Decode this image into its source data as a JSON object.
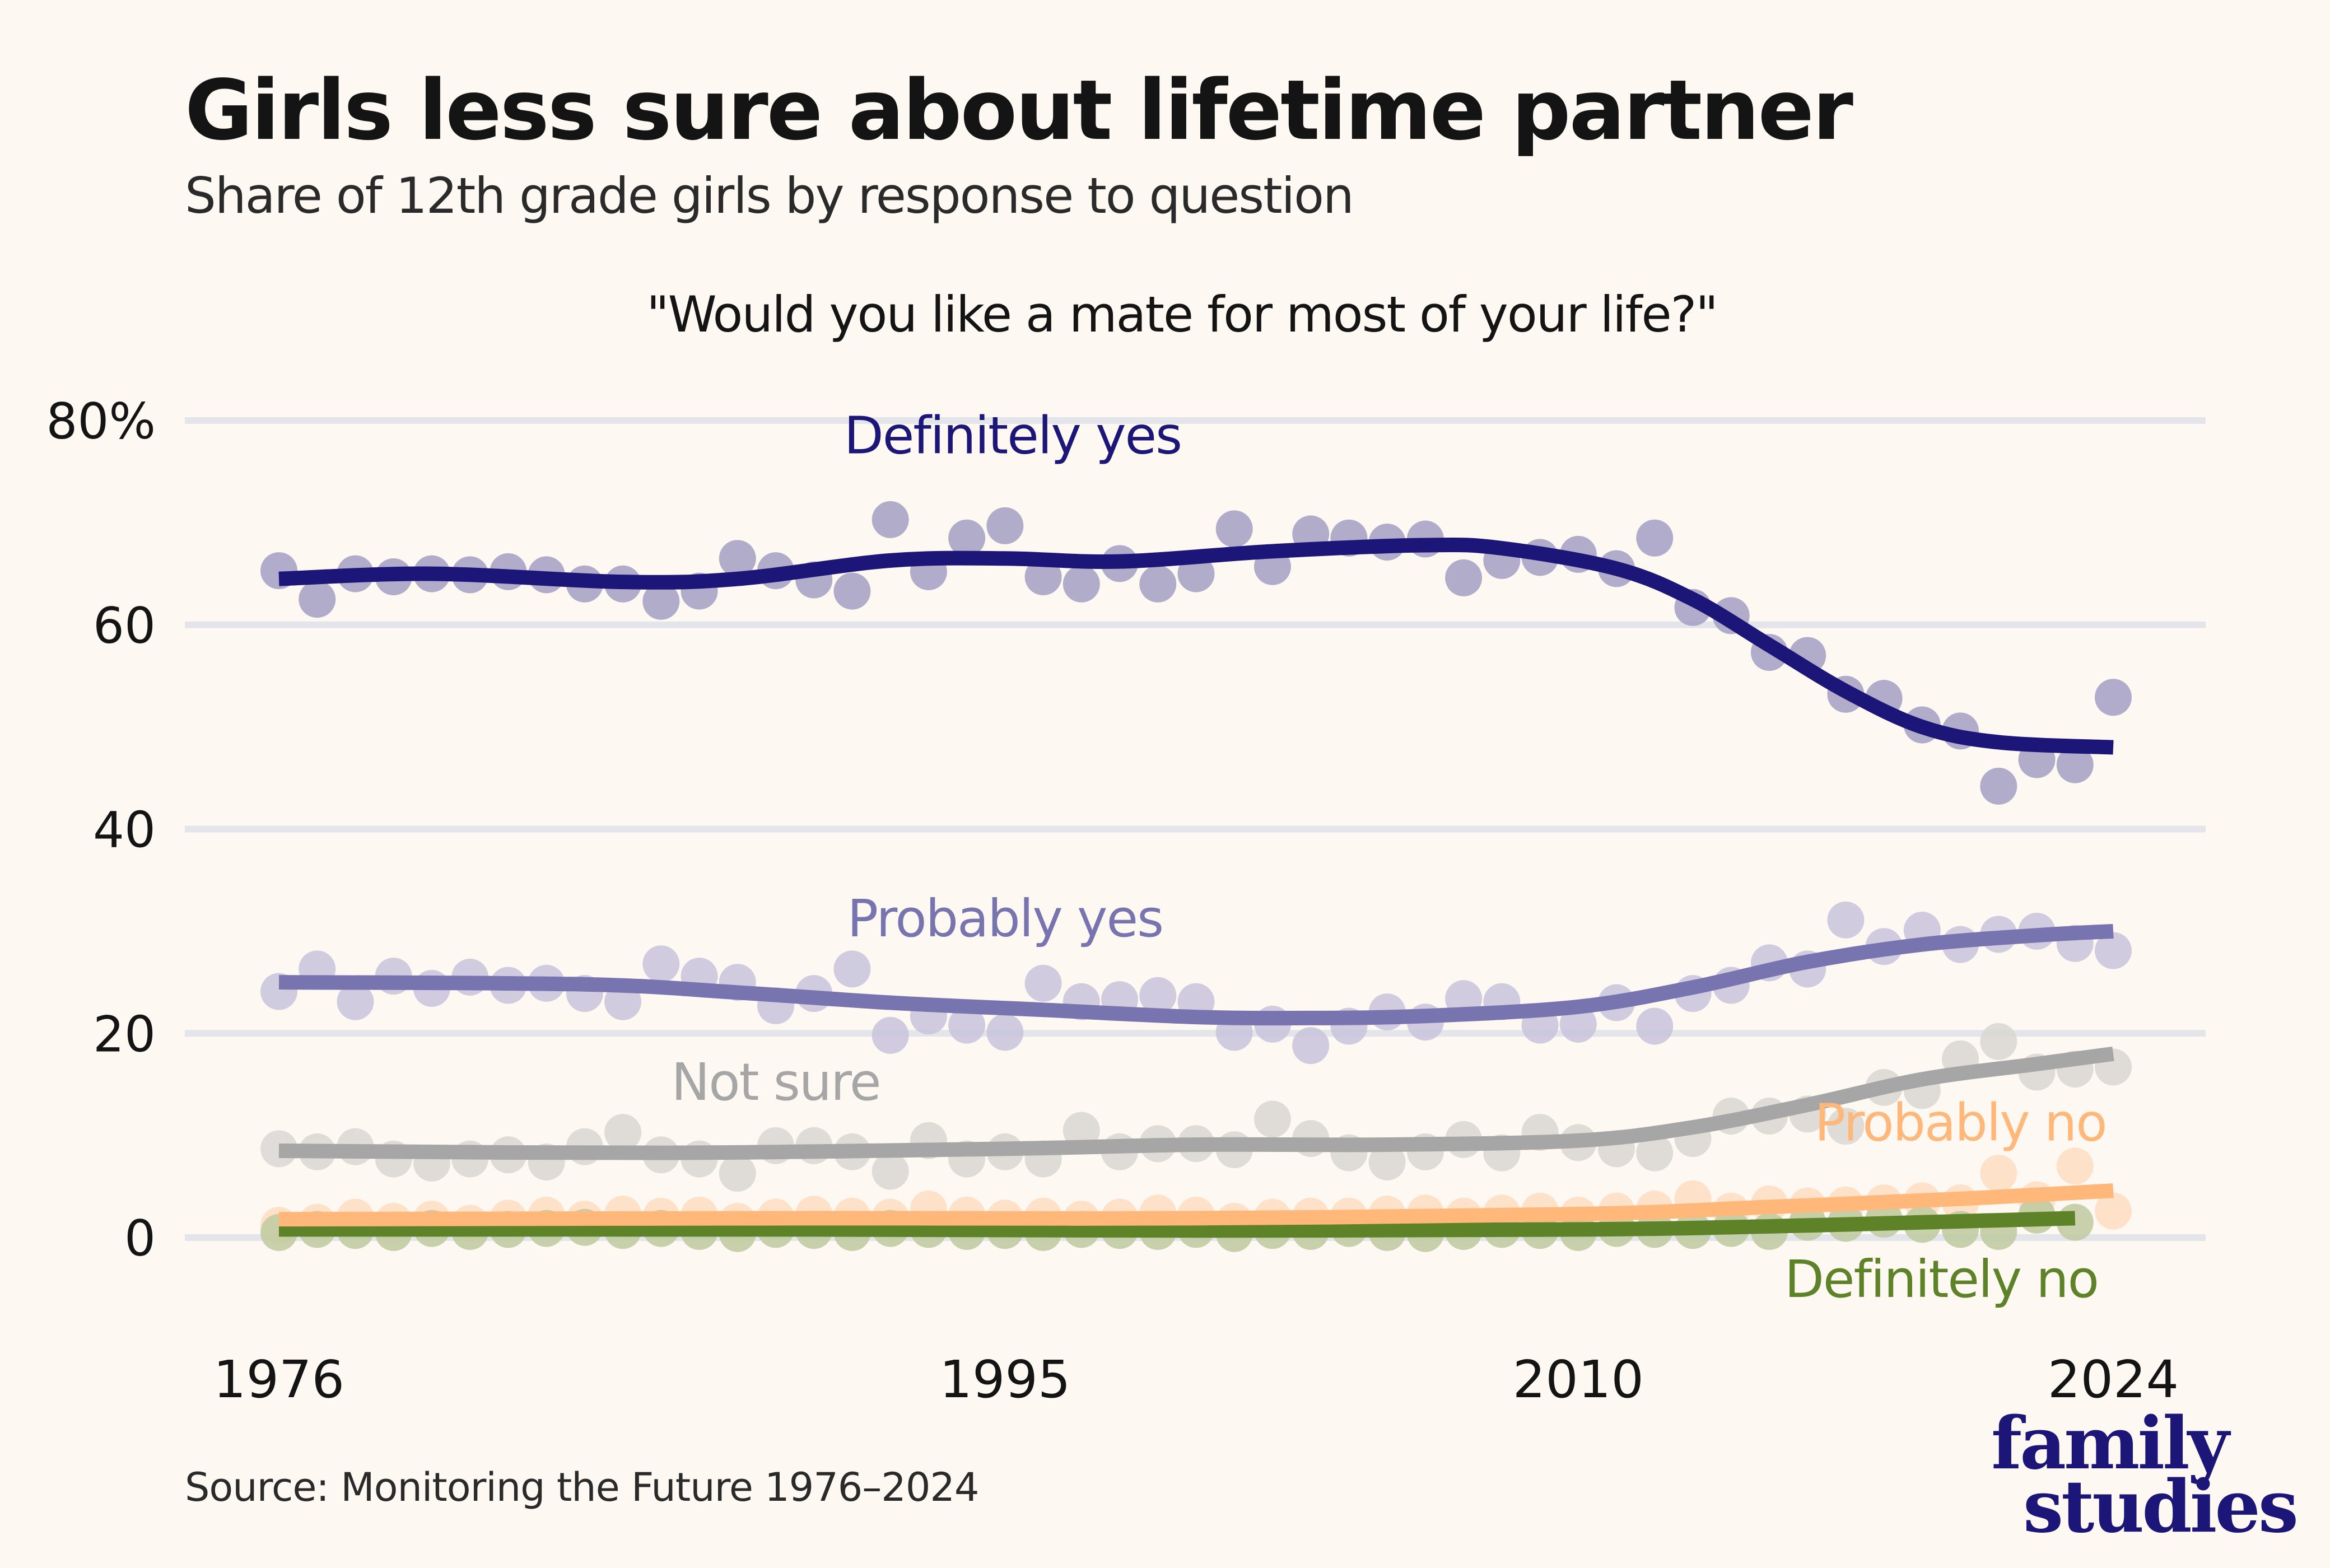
{
  "header": {
    "title": "Girls less sure about lifetime partner",
    "subtitle": "Share of 12th grade girls by response to question",
    "question": "\"Would you like a mate for most of your life?\""
  },
  "footer": {
    "source": "Source: Monitoring the Future 1976–2024",
    "logo_line1": "family",
    "logo_line2": "studies"
  },
  "colors": {
    "background": "#FEF8F3",
    "grid": "#E3E5EB",
    "logo": "#1C1678"
  },
  "chart_data": {
    "type": "scatter",
    "title": "Girls less sure about lifetime partner",
    "subtitle": "Share of 12th grade girls by response to question",
    "annotation": "\"Would you like a mate for most of your life?\"",
    "xlabel": "",
    "ylabel": "",
    "xlim": [
      1976,
      2024
    ],
    "ylim": [
      0,
      80
    ],
    "x_ticks": [
      1976,
      1995,
      2010,
      2024
    ],
    "x_tick_labels": [
      "1976",
      "1995",
      "2010",
      "2024"
    ],
    "y_ticks": [
      0,
      20,
      40,
      60,
      80
    ],
    "y_tick_labels": [
      "0",
      "20",
      "40",
      "60",
      "80%"
    ],
    "grid": "horizontal",
    "legend": "direct labels",
    "series": [
      {
        "name": "Definitely yes",
        "label": "Definitely yes",
        "line_color": "#1C1678",
        "dot_color": "#A49FC4",
        "label_year": 1995.2,
        "label_value": 76.8,
        "x": [
          1976,
          1977,
          1978,
          1979,
          1980,
          1981,
          1982,
          1983,
          1984,
          1985,
          1986,
          1987,
          1988,
          1989,
          1990,
          1991,
          1992,
          1993,
          1994,
          1995,
          1996,
          1997,
          1998,
          1999,
          2000,
          2001,
          2002,
          2003,
          2004,
          2005,
          2006,
          2007,
          2008,
          2009,
          2010,
          2011,
          2012,
          2013,
          2014,
          2015,
          2016,
          2017,
          2018,
          2019,
          2020,
          2021,
          2022,
          2023,
          2024
        ],
        "values": [
          65.3,
          62.5,
          65.0,
          64.7,
          65.0,
          64.9,
          65.2,
          64.9,
          64.0,
          64.0,
          62.3,
          63.3,
          66.5,
          65.3,
          64.4,
          63.3,
          70.3,
          65.2,
          68.5,
          69.7,
          64.7,
          64.0,
          66.0,
          64.0,
          65.0,
          69.4,
          65.7,
          68.9,
          68.5,
          68.1,
          68.4,
          64.6,
          66.3,
          66.6,
          66.9,
          65.5,
          68.5,
          61.7,
          60.9,
          57.3,
          57.0,
          53.2,
          52.8,
          50.2,
          49.6,
          44.2,
          46.8,
          46.3,
          52.9
        ],
        "trend_x": [
          1976,
          1980,
          1985,
          1988,
          1992,
          1995,
          1998,
          2002,
          2006,
          2008,
          2011,
          2013,
          2015,
          2017,
          2019,
          2021,
          2024
        ],
        "trend": [
          64.5,
          65.0,
          64.2,
          64.5,
          66.3,
          66.5,
          66.2,
          67.2,
          67.8,
          67.5,
          65.5,
          62.5,
          58.0,
          53.5,
          50.0,
          48.5,
          48.0
        ]
      },
      {
        "name": "Probably yes",
        "label": "Probably yes",
        "line_color": "#7874AF",
        "dot_color": "#C8C4DC",
        "label_year": 1995.0,
        "label_value": 29.5,
        "x": [
          1976,
          1977,
          1978,
          1979,
          1980,
          1981,
          1982,
          1983,
          1984,
          1985,
          1986,
          1987,
          1988,
          1989,
          1990,
          1991,
          1992,
          1993,
          1994,
          1995,
          1996,
          1997,
          1998,
          1999,
          2000,
          2001,
          2002,
          2003,
          2004,
          2005,
          2006,
          2007,
          2008,
          2009,
          2010,
          2011,
          2012,
          2013,
          2014,
          2015,
          2016,
          2017,
          2018,
          2019,
          2020,
          2021,
          2022,
          2023,
          2024
        ],
        "values": [
          24.1,
          26.3,
          23.1,
          25.6,
          24.4,
          25.5,
          24.7,
          24.9,
          23.9,
          23.1,
          26.8,
          25.6,
          25.0,
          22.7,
          23.9,
          26.3,
          19.8,
          21.7,
          20.8,
          20.1,
          24.9,
          23.1,
          23.3,
          23.7,
          23.1,
          20.1,
          20.9,
          18.8,
          20.7,
          22.1,
          21.1,
          23.4,
          23.1,
          20.8,
          20.9,
          23.0,
          20.7,
          23.9,
          24.7,
          26.9,
          26.3,
          31.1,
          28.5,
          30.1,
          28.7,
          29.7,
          30.0,
          28.8,
          28.1
        ],
        "trend_x": [
          1976,
          1984,
          1988,
          1992,
          1996,
          2000,
          2003,
          2006,
          2010,
          2013,
          2016,
          2019,
          2022,
          2024
        ],
        "trend": [
          25.0,
          24.8,
          24.0,
          23.0,
          22.3,
          21.6,
          21.5,
          21.7,
          22.6,
          24.5,
          27.0,
          28.7,
          29.6,
          30.0
        ]
      },
      {
        "name": "Not sure",
        "label": "Not sure",
        "line_color": "#A6A6A6",
        "dot_color": "#DAD7D3",
        "label_year": 1989.0,
        "label_value": 13.5,
        "x": [
          1976,
          1977,
          1978,
          1979,
          1980,
          1981,
          1982,
          1983,
          1984,
          1985,
          1986,
          1987,
          1988,
          1989,
          1990,
          1991,
          1992,
          1993,
          1994,
          1995,
          1996,
          1997,
          1998,
          1999,
          2000,
          2001,
          2002,
          2003,
          2004,
          2005,
          2006,
          2007,
          2008,
          2009,
          2010,
          2011,
          2012,
          2013,
          2014,
          2015,
          2016,
          2017,
          2018,
          2019,
          2020,
          2021,
          2022,
          2023,
          2024
        ],
        "values": [
          8.7,
          8.4,
          8.9,
          7.7,
          7.3,
          7.7,
          8.1,
          7.4,
          8.9,
          10.3,
          8.1,
          7.7,
          6.3,
          9.0,
          9.0,
          8.4,
          6.5,
          9.5,
          7.7,
          8.4,
          7.7,
          10.5,
          8.4,
          9.2,
          9.2,
          8.6,
          11.6,
          9.7,
          8.3,
          7.4,
          8.4,
          9.6,
          8.3,
          10.3,
          9.3,
          8.7,
          8.3,
          9.7,
          11.9,
          11.9,
          12.1,
          10.9,
          14.7,
          14.4,
          17.5,
          19.2,
          16.2,
          16.5,
          16.7
        ],
        "trend_x": [
          1976,
          1986,
          1995,
          2000,
          2005,
          2010,
          2013,
          2016,
          2019,
          2022,
          2024
        ],
        "trend": [
          8.5,
          8.3,
          8.7,
          9.1,
          9.1,
          9.5,
          10.8,
          13.0,
          15.5,
          17.0,
          18.0
        ]
      },
      {
        "name": "Probably no",
        "label": "Probably no",
        "line_color": "#FFB77A",
        "dot_color": "#FFDDC2",
        "label_year": 2020.0,
        "label_value": 9.5,
        "x": [
          1976,
          1977,
          1978,
          1979,
          1980,
          1981,
          1982,
          1983,
          1984,
          1985,
          1986,
          1987,
          1988,
          1989,
          1990,
          1991,
          1992,
          1993,
          1994,
          1995,
          1996,
          1997,
          1998,
          1999,
          2000,
          2001,
          2002,
          2003,
          2004,
          2005,
          2006,
          2007,
          2008,
          2009,
          2010,
          2011,
          2012,
          2013,
          2014,
          2015,
          2016,
          2017,
          2018,
          2019,
          2020,
          2021,
          2022,
          2023,
          2024
        ],
        "values": [
          1.2,
          1.5,
          2.0,
          1.6,
          1.8,
          1.4,
          1.9,
          2.2,
          1.8,
          2.3,
          2.1,
          2.2,
          1.6,
          2.0,
          2.3,
          2.1,
          2.0,
          2.8,
          2.2,
          1.9,
          2.1,
          1.8,
          2.0,
          2.4,
          2.2,
          1.6,
          2.0,
          2.1,
          2.1,
          2.3,
          2.4,
          2.1,
          2.4,
          2.6,
          2.2,
          2.6,
          2.8,
          3.8,
          2.6,
          3.3,
          3.1,
          3.2,
          3.4,
          3.6,
          3.4,
          6.3,
          3.7,
          7.0,
          2.6
        ],
        "trend_x": [
          1976,
          1990,
          2000,
          2010,
          2015,
          2020,
          2024
        ],
        "trend": [
          1.8,
          1.9,
          1.9,
          2.3,
          3.0,
          3.8,
          4.6
        ]
      },
      {
        "name": "Definitely no",
        "label": "Definitely no",
        "line_color": "#5E8228",
        "dot_color": "#BECA9F",
        "label_year": 2019.5,
        "label_value": -5.8,
        "x": [
          1976,
          1977,
          1978,
          1979,
          1980,
          1981,
          1982,
          1983,
          1984,
          1985,
          1986,
          1987,
          1988,
          1989,
          1990,
          1991,
          1992,
          1993,
          1994,
          1995,
          1996,
          1997,
          1998,
          1999,
          2000,
          2001,
          2002,
          2003,
          2004,
          2005,
          2006,
          2007,
          2008,
          2009,
          2010,
          2011,
          2012,
          2013,
          2014,
          2015,
          2016,
          2017,
          2018,
          2019,
          2020,
          2021,
          2022,
          2023
        ],
        "values": [
          0.5,
          0.8,
          0.7,
          0.5,
          0.9,
          0.6,
          0.8,
          0.9,
          1.0,
          0.7,
          0.9,
          0.6,
          0.4,
          0.8,
          0.7,
          0.5,
          0.9,
          0.8,
          0.6,
          0.7,
          0.5,
          0.8,
          0.7,
          0.6,
          0.8,
          0.4,
          0.7,
          0.6,
          0.9,
          0.5,
          0.4,
          0.6,
          0.8,
          0.7,
          0.5,
          0.9,
          0.8,
          0.7,
          0.9,
          0.6,
          1.5,
          1.4,
          1.8,
          1.3,
          0.8,
          0.6,
          2.2,
          1.5
        ],
        "trend_x": [
          1976,
          1990,
          2000,
          2010,
          2015,
          2020,
          2023
        ],
        "trend": [
          0.8,
          0.8,
          0.7,
          0.8,
          1.1,
          1.6,
          1.9
        ]
      }
    ]
  }
}
